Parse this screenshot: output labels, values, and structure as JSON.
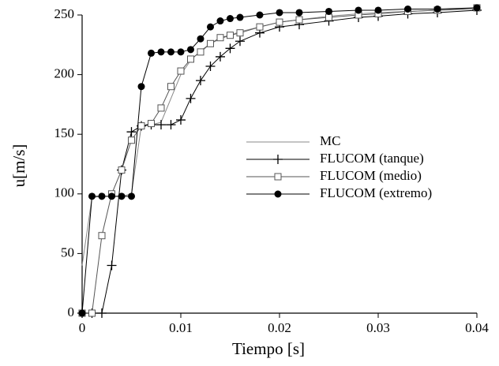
{
  "chart_data": {
    "type": "line",
    "x_label": "Tiempo [s]",
    "y_label": "u[m/s]",
    "xlim": [
      0,
      0.04
    ],
    "xticks": [
      0,
      0.01,
      0.02,
      0.03,
      0.04
    ],
    "ylim": [
      0,
      250
    ],
    "yticks": [
      0,
      50,
      100,
      150,
      200,
      250
    ],
    "legend": "right",
    "x": [
      0,
      0.001,
      0.002,
      0.003,
      0.004,
      0.005,
      0.006,
      0.007,
      0.008,
      0.009,
      0.01,
      0.011,
      0.012,
      0.013,
      0.014,
      0.015,
      0.016,
      0.018,
      0.02,
      0.022,
      0.025,
      0.028,
      0.03,
      0.033,
      0.036,
      0.04
    ],
    "series": [
      {
        "name": "MC",
        "color": "#888888",
        "marker": "none",
        "values": [
          40,
          97,
          98,
          98,
          98,
          100,
          157,
          158,
          160,
          180,
          200,
          212,
          220,
          226,
          230,
          233,
          236,
          240,
          244,
          246,
          249,
          251,
          252,
          253,
          254,
          255
        ]
      },
      {
        "name": "FLUCOM (tanque)",
        "color": "#000000",
        "marker": "plus",
        "values": [
          0,
          0,
          0,
          40,
          120,
          152,
          157,
          158,
          158,
          158,
          162,
          180,
          195,
          207,
          215,
          222,
          228,
          235,
          240,
          242,
          245,
          248,
          249,
          251,
          252,
          254
        ]
      },
      {
        "name": "FLUCOM (medio)",
        "color": "#555555",
        "marker": "square",
        "values": [
          0,
          0,
          65,
          100,
          120,
          145,
          157,
          159,
          172,
          190,
          203,
          213,
          219,
          226,
          231,
          233,
          235,
          240,
          244,
          246,
          248,
          250,
          251,
          253,
          254,
          256
        ]
      },
      {
        "name": "FLUCOM (extremo)",
        "color": "#000000",
        "marker": "circle",
        "values": [
          0,
          98,
          98,
          98,
          98,
          98,
          190,
          218,
          219,
          219,
          219,
          221,
          230,
          240,
          245,
          247,
          248,
          250,
          252,
          252,
          253,
          254,
          254,
          255,
          255,
          256
        ]
      }
    ]
  }
}
